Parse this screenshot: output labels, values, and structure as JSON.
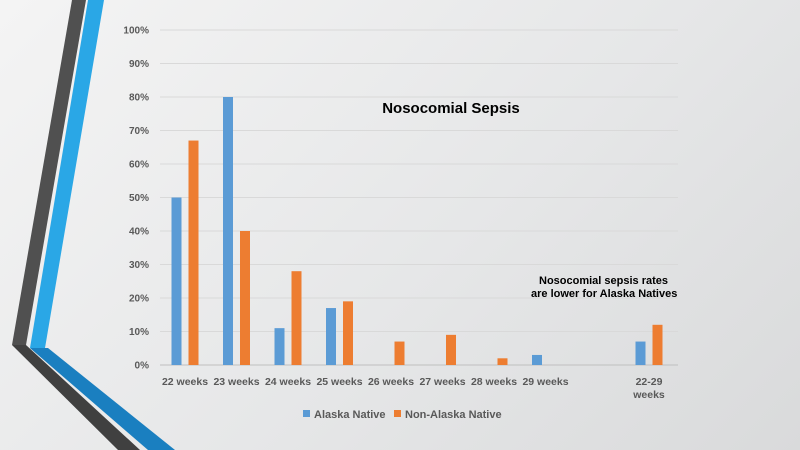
{
  "colors": {
    "alaska_native": "#5b9bd5",
    "non_alaska_native": "#ed7d31",
    "accent_blue": "#29a8e8",
    "accent_dark": "#4a4a4a"
  },
  "chart_data": {
    "type": "bar",
    "title": "Nosocomial Sepsis",
    "categories": [
      "22 weeks",
      "23 weeks",
      "24 weeks",
      "25 weeks",
      "26 weeks",
      "27 weeks",
      "28 weeks",
      "29 weeks",
      "22-29 weeks"
    ],
    "category_lines": [
      [
        "22 weeks"
      ],
      [
        "23 weeks"
      ],
      [
        "24 weeks"
      ],
      [
        "25 weeks"
      ],
      [
        "26 weeks"
      ],
      [
        "27 weeks"
      ],
      [
        "28 weeks"
      ],
      [
        "29 weeks"
      ],
      [
        "22-29",
        "weeks"
      ]
    ],
    "series": [
      {
        "name": "Alaska Native",
        "values": [
          50,
          80,
          11,
          17,
          0,
          0,
          0,
          3,
          7
        ]
      },
      {
        "name": "Non-Alaska Native",
        "values": [
          67,
          40,
          28,
          19,
          7,
          9,
          2,
          0,
          12
        ]
      }
    ],
    "ylim": [
      0,
      100
    ],
    "yticks": [
      "0%",
      "10%",
      "20%",
      "30%",
      "40%",
      "50%",
      "60%",
      "70%",
      "80%",
      "90%",
      "100%"
    ],
    "grid": true,
    "legend_position": "bottom",
    "annotation": [
      "Nosocomial sepsis rates",
      "are lower for Alaska Natives"
    ]
  }
}
